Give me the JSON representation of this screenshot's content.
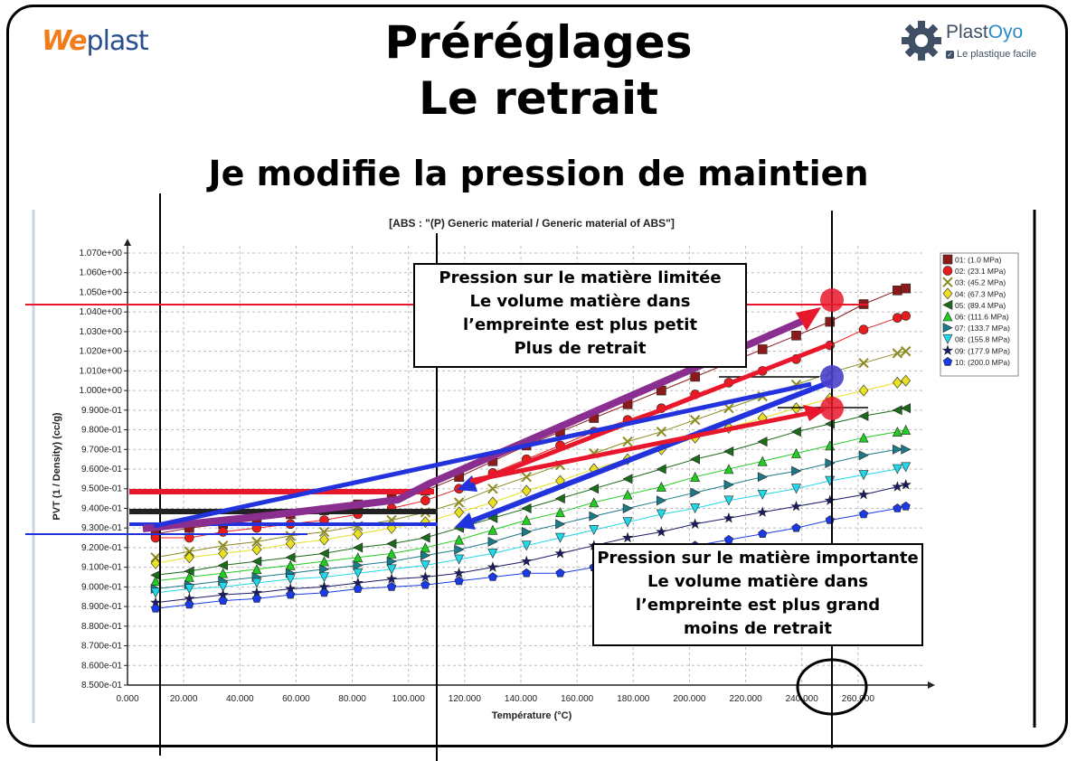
{
  "header": {
    "title_line1": "Préréglages",
    "title_line2": "Le retrait",
    "subtitle": "Je modifie la pression de maintien",
    "logo_left_w": "We",
    "logo_left_plast": "plast",
    "logo_right_plast": "Plast",
    "logo_right_oyo": "Oyo",
    "logo_right_tagline": "Le plastique facile"
  },
  "annotations": {
    "box1": [
      "Pression sur le matière limitée",
      "Le volume matière dans",
      "l’empreinte est plus petit",
      "Plus de retrait"
    ],
    "box2": [
      "Pression sur le matière importante",
      "Le volume matière dans",
      "l’empreinte est plus grand",
      "moins de retrait"
    ]
  },
  "colors": {
    "accent_red": "#e8172c",
    "accent_blue": "#2233dd",
    "accent_purple": "#8a2f8f",
    "accent_dark": "#222222"
  },
  "chart_data": {
    "type": "line",
    "title": "[ABS : \"(P)  Generic material / Generic material of ABS\"]",
    "xlabel": "Température (°C)",
    "ylabel": "PVT (1 / Density) (cc/g)",
    "xlim": [
      0,
      280
    ],
    "ylim": [
      0.85,
      1.07
    ],
    "x_ticks": [
      "0.000",
      "20.000",
      "40.000",
      "60.000",
      "80.000",
      "100.000",
      "120.000",
      "140.000",
      "160.000",
      "180.000",
      "200.000",
      "220.000",
      "240.000",
      "260.000"
    ],
    "x_tick_values": [
      0,
      20,
      40,
      60,
      80,
      100,
      120,
      140,
      160,
      180,
      200,
      220,
      240,
      260
    ],
    "y_ticks": [
      "8.500e-01",
      "8.600e-01",
      "8.700e-01",
      "8.800e-01",
      "8.900e-01",
      "9.000e-01",
      "9.100e-01",
      "9.200e-01",
      "9.300e-01",
      "9.400e-01",
      "9.500e-01",
      "9.600e-01",
      "9.700e-01",
      "9.800e-01",
      "9.900e-01",
      "1.000e+00",
      "1.010e+00",
      "1.020e+00",
      "1.030e+00",
      "1.040e+00",
      "1.050e+00",
      "1.060e+00",
      "1.070e+00"
    ],
    "y_tick_values": [
      0.85,
      0.86,
      0.87,
      0.88,
      0.89,
      0.9,
      0.91,
      0.92,
      0.93,
      0.94,
      0.95,
      0.96,
      0.97,
      0.98,
      0.99,
      1.0,
      1.01,
      1.02,
      1.03,
      1.04,
      1.05,
      1.06,
      1.07
    ],
    "grid": true,
    "legend": "right",
    "series": [
      {
        "name": "01: (1.0 MPa)",
        "color": "#8b1a1a",
        "marker": "square",
        "x": [
          10,
          22,
          34,
          46,
          58,
          70,
          82,
          94,
          106,
          118,
          130,
          142,
          154,
          166,
          178,
          190,
          202,
          214,
          226,
          238,
          250,
          262,
          274,
          277
        ],
        "y": [
          0.927,
          0.93,
          0.932,
          0.934,
          0.937,
          0.939,
          0.942,
          0.945,
          0.949,
          0.956,
          0.964,
          0.972,
          0.979,
          0.986,
          0.993,
          1.0,
          1.007,
          1.014,
          1.021,
          1.028,
          1.035,
          1.044,
          1.051,
          1.052
        ]
      },
      {
        "name": "02: (23.1 MPa)",
        "color": "#e81c1c",
        "marker": "circle",
        "x": [
          10,
          22,
          34,
          46,
          58,
          70,
          82,
          94,
          106,
          118,
          130,
          142,
          154,
          166,
          178,
          190,
          202,
          214,
          226,
          238,
          250,
          262,
          274,
          277
        ],
        "y": [
          0.925,
          0.925,
          0.928,
          0.93,
          0.932,
          0.934,
          0.937,
          0.94,
          0.944,
          0.95,
          0.958,
          0.965,
          0.972,
          0.979,
          0.985,
          0.991,
          0.998,
          1.004,
          1.01,
          1.016,
          1.023,
          1.031,
          1.037,
          1.038
        ]
      },
      {
        "name": "03: (45.2 MPa)",
        "color": "#8b8b20",
        "marker": "x",
        "x": [
          10,
          22,
          34,
          46,
          58,
          70,
          82,
          94,
          106,
          118,
          130,
          142,
          154,
          166,
          178,
          190,
          202,
          214,
          226,
          238,
          250,
          262,
          274,
          277
        ],
        "y": [
          0.915,
          0.918,
          0.921,
          0.923,
          0.926,
          0.928,
          0.931,
          0.934,
          0.938,
          0.943,
          0.95,
          0.956,
          0.962,
          0.968,
          0.974,
          0.979,
          0.985,
          0.991,
          0.997,
          1.003,
          1.009,
          1.014,
          1.019,
          1.02
        ]
      },
      {
        "name": "04: (67.3 MPa)",
        "color": "#e8e020",
        "marker": "diamond",
        "x": [
          10,
          22,
          34,
          46,
          58,
          70,
          82,
          94,
          106,
          118,
          130,
          142,
          154,
          166,
          178,
          190,
          202,
          214,
          226,
          238,
          250,
          262,
          274,
          277
        ],
        "y": [
          0.912,
          0.915,
          0.917,
          0.919,
          0.922,
          0.924,
          0.927,
          0.93,
          0.933,
          0.938,
          0.943,
          0.949,
          0.954,
          0.96,
          0.965,
          0.97,
          0.976,
          0.981,
          0.986,
          0.991,
          0.996,
          1.0,
          1.004,
          1.005
        ]
      },
      {
        "name": "05: (89.4 MPa)",
        "color": "#1a6b1a",
        "marker": "triangle-left",
        "x": [
          10,
          22,
          34,
          46,
          58,
          70,
          82,
          94,
          106,
          118,
          130,
          142,
          154,
          166,
          178,
          190,
          202,
          214,
          226,
          238,
          250,
          262,
          274,
          277
        ],
        "y": [
          0.906,
          0.908,
          0.911,
          0.913,
          0.915,
          0.917,
          0.92,
          0.922,
          0.925,
          0.93,
          0.935,
          0.94,
          0.945,
          0.95,
          0.955,
          0.96,
          0.965,
          0.969,
          0.974,
          0.979,
          0.983,
          0.987,
          0.99,
          0.991
        ]
      },
      {
        "name": "06: (111.6 MPa)",
        "color": "#22cc22",
        "marker": "triangle-up",
        "x": [
          10,
          22,
          34,
          46,
          58,
          70,
          82,
          94,
          106,
          118,
          130,
          142,
          154,
          166,
          178,
          190,
          202,
          214,
          226,
          238,
          250,
          262,
          274,
          277
        ],
        "y": [
          0.903,
          0.905,
          0.907,
          0.909,
          0.911,
          0.913,
          0.915,
          0.917,
          0.92,
          0.924,
          0.929,
          0.934,
          0.938,
          0.943,
          0.947,
          0.951,
          0.956,
          0.96,
          0.964,
          0.968,
          0.972,
          0.976,
          0.979,
          0.98
        ]
      },
      {
        "name": "07: (133.7 MPa)",
        "color": "#1a7a8a",
        "marker": "triangle-right",
        "x": [
          10,
          22,
          34,
          46,
          58,
          70,
          82,
          94,
          106,
          118,
          130,
          142,
          154,
          166,
          178,
          190,
          202,
          214,
          226,
          238,
          250,
          262,
          274,
          277
        ],
        "y": [
          0.899,
          0.901,
          0.903,
          0.905,
          0.907,
          0.909,
          0.911,
          0.913,
          0.916,
          0.919,
          0.923,
          0.928,
          0.932,
          0.936,
          0.94,
          0.944,
          0.948,
          0.952,
          0.956,
          0.959,
          0.963,
          0.967,
          0.97,
          0.97
        ]
      },
      {
        "name": "08: (155.8 MPa)",
        "color": "#20d8e8",
        "marker": "triangle-down",
        "x": [
          10,
          22,
          34,
          46,
          58,
          70,
          82,
          94,
          106,
          118,
          130,
          142,
          154,
          166,
          178,
          190,
          202,
          214,
          226,
          238,
          250,
          262,
          274,
          277
        ],
        "y": [
          0.897,
          0.899,
          0.9,
          0.902,
          0.904,
          0.905,
          0.907,
          0.909,
          0.911,
          0.914,
          0.917,
          0.921,
          0.925,
          0.929,
          0.933,
          0.937,
          0.94,
          0.944,
          0.947,
          0.95,
          0.954,
          0.957,
          0.96,
          0.961
        ]
      },
      {
        "name": "09: (177.9 MPa)",
        "color": "#1a1a6b",
        "marker": "star",
        "x": [
          10,
          22,
          34,
          46,
          58,
          70,
          82,
          94,
          106,
          118,
          130,
          142,
          154,
          166,
          178,
          190,
          202,
          214,
          226,
          238,
          250,
          262,
          274,
          277
        ],
        "y": [
          0.892,
          0.894,
          0.896,
          0.897,
          0.899,
          0.9,
          0.902,
          0.904,
          0.905,
          0.907,
          0.91,
          0.913,
          0.917,
          0.921,
          0.925,
          0.928,
          0.932,
          0.935,
          0.938,
          0.941,
          0.944,
          0.947,
          0.951,
          0.952
        ]
      },
      {
        "name": "10: (200.0 MPa)",
        "color": "#1a3ae8",
        "marker": "pentagon",
        "x": [
          10,
          22,
          34,
          46,
          58,
          70,
          82,
          94,
          106,
          118,
          130,
          142,
          154,
          166,
          178,
          190,
          202,
          214,
          226,
          238,
          250,
          262,
          274,
          277
        ],
        "y": [
          0.889,
          0.891,
          0.893,
          0.894,
          0.896,
          0.897,
          0.899,
          0.9,
          0.901,
          0.903,
          0.905,
          0.907,
          0.907,
          0.91,
          0.914,
          0.917,
          0.921,
          0.924,
          0.927,
          0.93,
          0.934,
          0.937,
          0.94,
          0.941
        ]
      }
    ]
  }
}
